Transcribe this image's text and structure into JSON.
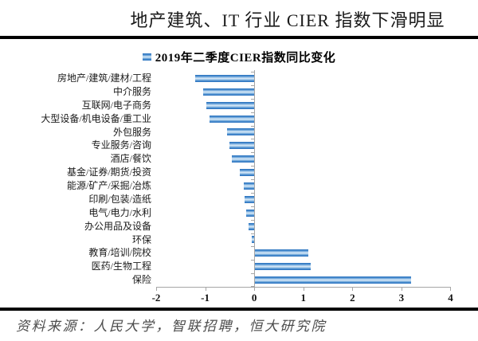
{
  "page": {
    "title": "地产建筑、IT 行业 CIER 指数下滑明显",
    "source_note": "资料来源：人民大学，智联招聘，恒大研究院"
  },
  "legend": {
    "marker": "blue-square-icon",
    "label": "2019年二季度CIER指数同比变化"
  },
  "chart_data": {
    "type": "bar",
    "orientation": "horizontal",
    "title": "2019年二季度CIER指数同比变化",
    "categories": [
      "房地产/建筑/建材/工程",
      "中介服务",
      "互联网/电子商务",
      "大型设备/机电设备/重工业",
      "外包服务",
      "专业服务/咨询",
      "酒店/餐饮",
      "基金/证券/期货/投资",
      "能源/矿产/采掘/冶炼",
      "印刷/包装/造纸",
      "电气/电力/水利",
      "办公用品及设备",
      "环保",
      "教育/培训/院校",
      "医药/生物工程",
      "保险"
    ],
    "values": [
      -1.2,
      -1.05,
      -0.98,
      -0.92,
      -0.55,
      -0.5,
      -0.45,
      -0.3,
      -0.22,
      -0.2,
      -0.17,
      -0.12,
      -0.05,
      1.1,
      1.15,
      3.2
    ],
    "xlim": [
      -2,
      4
    ],
    "x_ticks": [
      -2,
      -1,
      0,
      1,
      2,
      3,
      4
    ],
    "grid": false,
    "legend_position": "top-center",
    "bar_color": "#2a72bf",
    "bar_highlight_color": "#ddebf7",
    "axis_color": "#a6a6a6",
    "text_color": "#1a1a1a"
  }
}
